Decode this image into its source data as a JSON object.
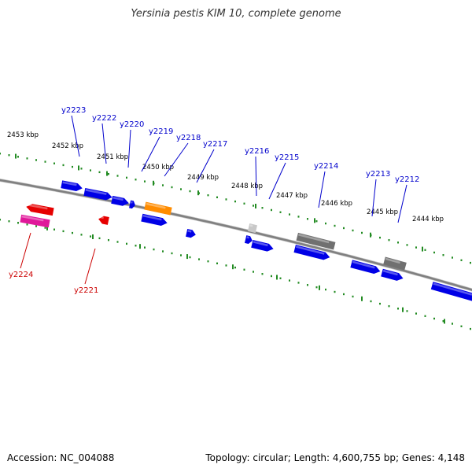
{
  "title": "Yersinia pestis KIM 10, complete genome",
  "footer": {
    "accession": "Accession: NC_004088",
    "summary": "Topology: circular; Length: 4,600,755 bp; Genes: 4,148"
  },
  "colors": {
    "backbone": "#808080",
    "ticks": "#228b22",
    "forward_label": "#0000cc",
    "reverse_label": "#cc0000",
    "blue_gene": "#0000e6",
    "red_gene": "#e60000",
    "pink_gene": "#e0189a",
    "orange_gene": "#ff8c00",
    "gray_gene": "#707070",
    "light_gene": "#c8c8c8"
  },
  "kbp_ticks": [
    "2453 kbp",
    "2452 kbp",
    "2451 kbp",
    "2450 kbp",
    "2449 kbp",
    "2448 kbp",
    "2447 kbp",
    "2446 kbp",
    "2445 kbp",
    "2444 kbp"
  ],
  "forward_genes": [
    "y2223",
    "y2222",
    "y2220",
    "y2219",
    "y2218",
    "y2217",
    "y2216",
    "y2215",
    "y2214",
    "y2213",
    "y2212"
  ],
  "reverse_genes": [
    "y2224",
    "y2221"
  ]
}
